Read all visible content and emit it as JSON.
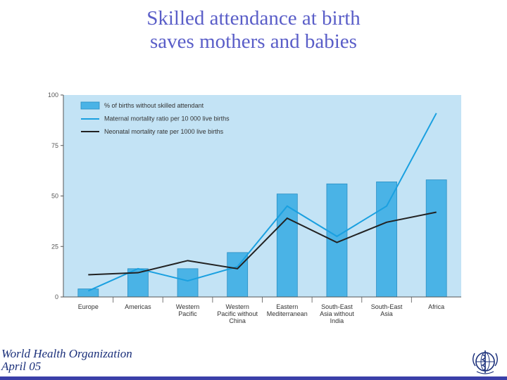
{
  "slide": {
    "title_line1": "Skilled attendance at birth",
    "title_line2": "saves mothers and babies",
    "org_line1": "World Health Organization",
    "org_line2": "April 05"
  },
  "colors": {
    "title": "#5a5ec8",
    "bar": "#4ab3e6",
    "maternal": "#1aa0e0",
    "neonatal": "#222222",
    "plot_bg": "#c3e3f5",
    "org": "#1a2f7a"
  },
  "chart_data": {
    "type": "bar",
    "title": "",
    "xlabel": "",
    "ylabel": "",
    "ylim": [
      0,
      100
    ],
    "yticks": [
      "0",
      "25",
      "50",
      "75",
      "100"
    ],
    "categories": [
      [
        "Europe"
      ],
      [
        "Americas"
      ],
      [
        "Western",
        "Pacific"
      ],
      [
        "Western",
        "Pacific without",
        "China"
      ],
      [
        "Eastern",
        "Mediterranean"
      ],
      [
        "South-East",
        "Asia without",
        "India"
      ],
      [
        "South-East",
        "Asia"
      ],
      [
        "Africa"
      ]
    ],
    "series": [
      {
        "name": "% of births without skilled attendant",
        "kind": "bar",
        "values": [
          4,
          14,
          14,
          22,
          51,
          56,
          57,
          58
        ]
      },
      {
        "name": "Maternal mortality ratio per 10 000 live births",
        "kind": "line",
        "values": [
          3,
          14,
          8,
          15,
          45,
          30,
          45,
          91
        ]
      },
      {
        "name": "Neonatal mortality rate per 1000 live births",
        "kind": "line",
        "values": [
          11,
          12,
          18,
          14,
          39,
          27,
          37,
          42
        ]
      }
    ],
    "legend_position": "top-left"
  }
}
